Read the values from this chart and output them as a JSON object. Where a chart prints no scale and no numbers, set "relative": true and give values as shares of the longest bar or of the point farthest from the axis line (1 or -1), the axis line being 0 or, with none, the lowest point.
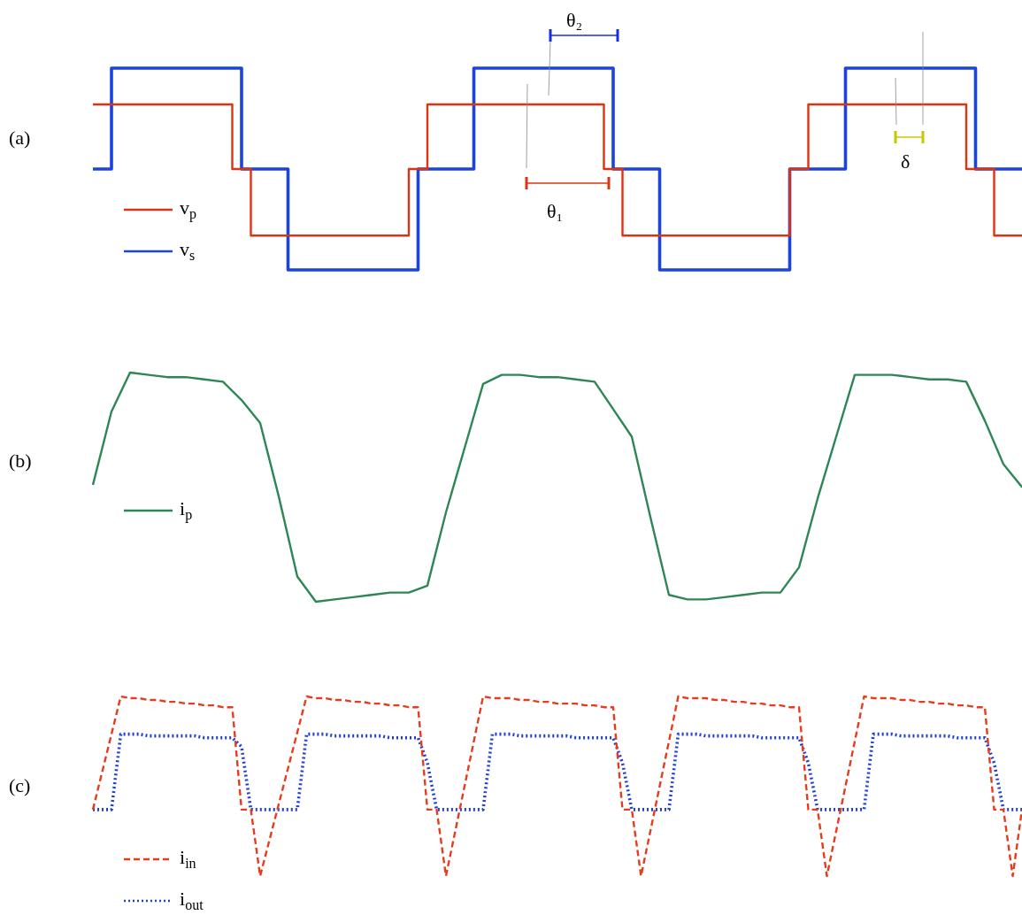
{
  "chart_data": [
    {
      "type": "step",
      "relative": true,
      "tick_labels": false,
      "marker": "none",
      "legend": "bottom left",
      "categories": [
        null,
        null,
        null,
        null,
        null,
        null,
        null,
        null,
        null,
        null,
        null,
        null,
        null,
        null,
        null,
        null,
        null,
        null,
        null,
        null,
        null,
        null,
        null,
        null,
        null,
        null,
        null,
        null,
        null,
        null,
        null,
        null,
        null,
        null,
        null,
        null,
        null,
        null,
        null,
        null,
        null,
        null,
        null,
        null,
        null,
        null,
        null,
        null,
        null,
        null,
        null,
        null,
        null,
        null,
        null,
        null,
        null,
        null,
        null,
        null,
        null,
        null,
        null,
        null,
        null,
        null,
        null,
        null,
        null,
        null,
        null,
        null,
        null,
        null,
        null,
        null,
        null,
        null,
        null,
        null,
        null,
        null,
        null,
        null,
        null,
        null,
        null,
        null,
        null,
        null,
        null,
        null,
        null,
        null,
        null,
        null,
        null,
        null,
        null,
        null,
        null
      ],
      "annotations": [
        "(a)",
        "θ₂",
        "θ₁",
        "δ"
      ],
      "series": [
        {
          "name": "v$_{p}$",
          "color": "#dd3311",
          "values": [
            0.82,
            0.82,
            0.82,
            0.82,
            0.82,
            0.82,
            0.82,
            0.82,
            0.82,
            0.82,
            0.82,
            0.82,
            0.82,
            0.82,
            0.82,
            0.82,
            0.5,
            0.5,
            0.17,
            0.17,
            0.17,
            0.17,
            0.17,
            0.17,
            0.17,
            0.17,
            0.17,
            0.17,
            0.17,
            0.17,
            0.17,
            0.17,
            0.17,
            0.17,
            0.17,
            0.5,
            0.5,
            0.82,
            0.82,
            0.82,
            0.82,
            0.82,
            0.82,
            0.82,
            0.82,
            0.82,
            0.82,
            0.82,
            0.82,
            0.82,
            0.82,
            0.82,
            0.82,
            0.82,
            0.82,
            0.82,
            0.5,
            0.5,
            0.17,
            0.17,
            0.17,
            0.17,
            0.17,
            0.17,
            0.17,
            0.17,
            0.17,
            0.17,
            0.17,
            0.17,
            0.17,
            0.17,
            0.17,
            0.17,
            0.17,
            0.17,
            0.5,
            0.5,
            0.82,
            0.82,
            0.82,
            0.82,
            0.82,
            0.82,
            0.82,
            0.82,
            0.82,
            0.82,
            0.82,
            0.82,
            0.82,
            0.82,
            0.82,
            0.82,
            0.82,
            0.5,
            0.5,
            0.5,
            0.17,
            0.17,
            0.17
          ]
        },
        {
          "name": "v$_{s}$",
          "color": "#1a44dd",
          "values": [
            0.5,
            0.5,
            0.5,
            1,
            1,
            1,
            1,
            1,
            1,
            1,
            1,
            1,
            1,
            1,
            1,
            1,
            1,
            0.5,
            0.5,
            0.5,
            0.5,
            0.5,
            0,
            0,
            0,
            0,
            0,
            0,
            0,
            0,
            0,
            0,
            0,
            0,
            0,
            0,
            0.5,
            0.5,
            0.5,
            0.5,
            0.5,
            0.5,
            1,
            1,
            1,
            1,
            1,
            1,
            1,
            1,
            1,
            1,
            1,
            1,
            1,
            1,
            1,
            0.5,
            0.5,
            0.5,
            0.5,
            0.5,
            0,
            0,
            0,
            0,
            0,
            0,
            0,
            0,
            0,
            0,
            0,
            0,
            0,
            0,
            0.5,
            0.5,
            0.5,
            0.5,
            0.5,
            0.5,
            1,
            1,
            1,
            1,
            1,
            1,
            1,
            1,
            1,
            1,
            1,
            1,
            1,
            1,
            0.5,
            0.5,
            0.5,
            0.5,
            0.5
          ]
        }
      ]
    },
    {
      "type": "line",
      "relative": true,
      "tick_labels": false,
      "marker": "none",
      "legend": "bottom left",
      "categories": [
        null,
        null,
        null,
        null,
        null,
        null,
        null,
        null,
        null,
        null,
        null,
        null,
        null,
        null,
        null,
        null,
        null,
        null,
        null,
        null,
        null,
        null,
        null,
        null,
        null,
        null,
        null,
        null,
        null,
        null,
        null,
        null,
        null,
        null,
        null,
        null,
        null,
        null,
        null,
        null,
        null,
        null,
        null,
        null,
        null,
        null,
        null,
        null,
        null,
        null,
        null
      ],
      "annotations": [
        "(b)"
      ],
      "series": [
        {
          "name": "i$_{p}$",
          "color": "#2e8655",
          "values": [
            0.51,
            0.83,
            1,
            0.99,
            0.98,
            0.98,
            0.97,
            0.96,
            0.88,
            0.78,
            0.46,
            0.11,
            0,
            0.01,
            0.02,
            0.03,
            0.04,
            0.04,
            0.07,
            0.39,
            0.67,
            0.95,
            0.99,
            0.99,
            0.98,
            0.98,
            0.97,
            0.96,
            0.84,
            0.72,
            0.37,
            0.03,
            0.01,
            0.01,
            0.02,
            0.03,
            0.04,
            0.04,
            0.15,
            0.45,
            0.72,
            0.99,
            0.99,
            0.99,
            0.98,
            0.97,
            0.97,
            0.96,
            0.79,
            0.6,
            0.5
          ]
        }
      ]
    },
    {
      "type": "line",
      "relative": true,
      "tick_labels": false,
      "marker": "none",
      "legend": "bottom left",
      "categories": [
        null,
        null,
        null,
        null,
        null,
        null,
        null,
        null,
        null,
        null,
        null,
        null,
        null,
        null,
        null,
        null,
        null,
        null,
        null,
        null,
        null,
        null,
        null,
        null,
        null,
        null,
        null,
        null,
        null,
        null,
        null,
        null,
        null,
        null,
        null,
        null,
        null,
        null,
        null,
        null,
        null,
        null,
        null,
        null,
        null,
        null,
        null,
        null,
        null,
        null,
        null,
        null,
        null,
        null,
        null,
        null,
        null,
        null,
        null,
        null,
        null,
        null,
        null,
        null,
        null,
        null,
        null,
        null,
        null,
        null,
        null,
        null,
        null,
        null,
        null,
        null,
        null,
        null,
        null,
        null,
        null,
        null,
        null,
        null,
        null,
        null,
        null,
        null,
        null,
        null,
        null,
        null,
        null,
        null,
        null,
        null,
        null,
        null,
        null,
        null,
        null
      ],
      "annotations": [
        "(c)"
      ],
      "series": [
        {
          "name": "i$_{in}$",
          "color": "#e63c1e",
          "line_style": "dashed",
          "values": [
            0.37,
            0.58,
            0.79,
            1,
            0.99,
            0.99,
            0.98,
            0.98,
            0.97,
            0.97,
            0.96,
            0.96,
            0.95,
            0.95,
            0.94,
            0.94,
            0.37,
            0.37,
            0,
            0.2,
            0.4,
            0.6,
            0.8,
            1,
            0.99,
            0.99,
            0.98,
            0.98,
            0.97,
            0.97,
            0.96,
            0.96,
            0.95,
            0.95,
            0.94,
            0.94,
            0.37,
            0.37,
            0,
            0.25,
            0.5,
            0.75,
            1,
            0.99,
            0.99,
            0.99,
            0.98,
            0.98,
            0.97,
            0.97,
            0.96,
            0.96,
            0.96,
            0.95,
            0.95,
            0.94,
            0.94,
            0.37,
            0.37,
            0,
            0.25,
            0.5,
            0.75,
            1,
            0.99,
            0.99,
            0.99,
            0.98,
            0.98,
            0.97,
            0.97,
            0.96,
            0.96,
            0.95,
            0.95,
            0.94,
            0.94,
            0.37,
            0.37,
            0,
            0.25,
            0.5,
            0.75,
            1,
            0.99,
            0.99,
            0.99,
            0.98,
            0.98,
            0.97,
            0.97,
            0.96,
            0.96,
            0.95,
            0.95,
            0.94,
            0.94,
            0.37,
            0.37,
            0,
            0.37
          ]
        },
        {
          "name": "i$_{out}$",
          "color": "#1f3fd6",
          "line_style": "dotted",
          "values": [
            0.37,
            0.37,
            0.37,
            0.79,
            0.79,
            0.79,
            0.78,
            0.78,
            0.78,
            0.78,
            0.78,
            0.78,
            0.77,
            0.77,
            0.77,
            0.77,
            0.72,
            0.37,
            0.37,
            0.37,
            0.37,
            0.37,
            0.37,
            0.79,
            0.79,
            0.79,
            0.78,
            0.78,
            0.78,
            0.78,
            0.78,
            0.78,
            0.77,
            0.77,
            0.77,
            0.77,
            0.63,
            0.37,
            0.37,
            0.37,
            0.37,
            0.37,
            0.37,
            0.79,
            0.79,
            0.79,
            0.78,
            0.78,
            0.78,
            0.78,
            0.78,
            0.78,
            0.77,
            0.77,
            0.77,
            0.77,
            0.77,
            0.63,
            0.37,
            0.37,
            0.37,
            0.37,
            0.37,
            0.79,
            0.79,
            0.79,
            0.78,
            0.78,
            0.78,
            0.78,
            0.78,
            0.78,
            0.77,
            0.77,
            0.77,
            0.77,
            0.77,
            0.63,
            0.37,
            0.37,
            0.37,
            0.37,
            0.37,
            0.37,
            0.79,
            0.79,
            0.79,
            0.78,
            0.78,
            0.78,
            0.78,
            0.78,
            0.78,
            0.77,
            0.77,
            0.77,
            0.77,
            0.63,
            0.37,
            0.37,
            0.37
          ]
        }
      ]
    }
  ]
}
